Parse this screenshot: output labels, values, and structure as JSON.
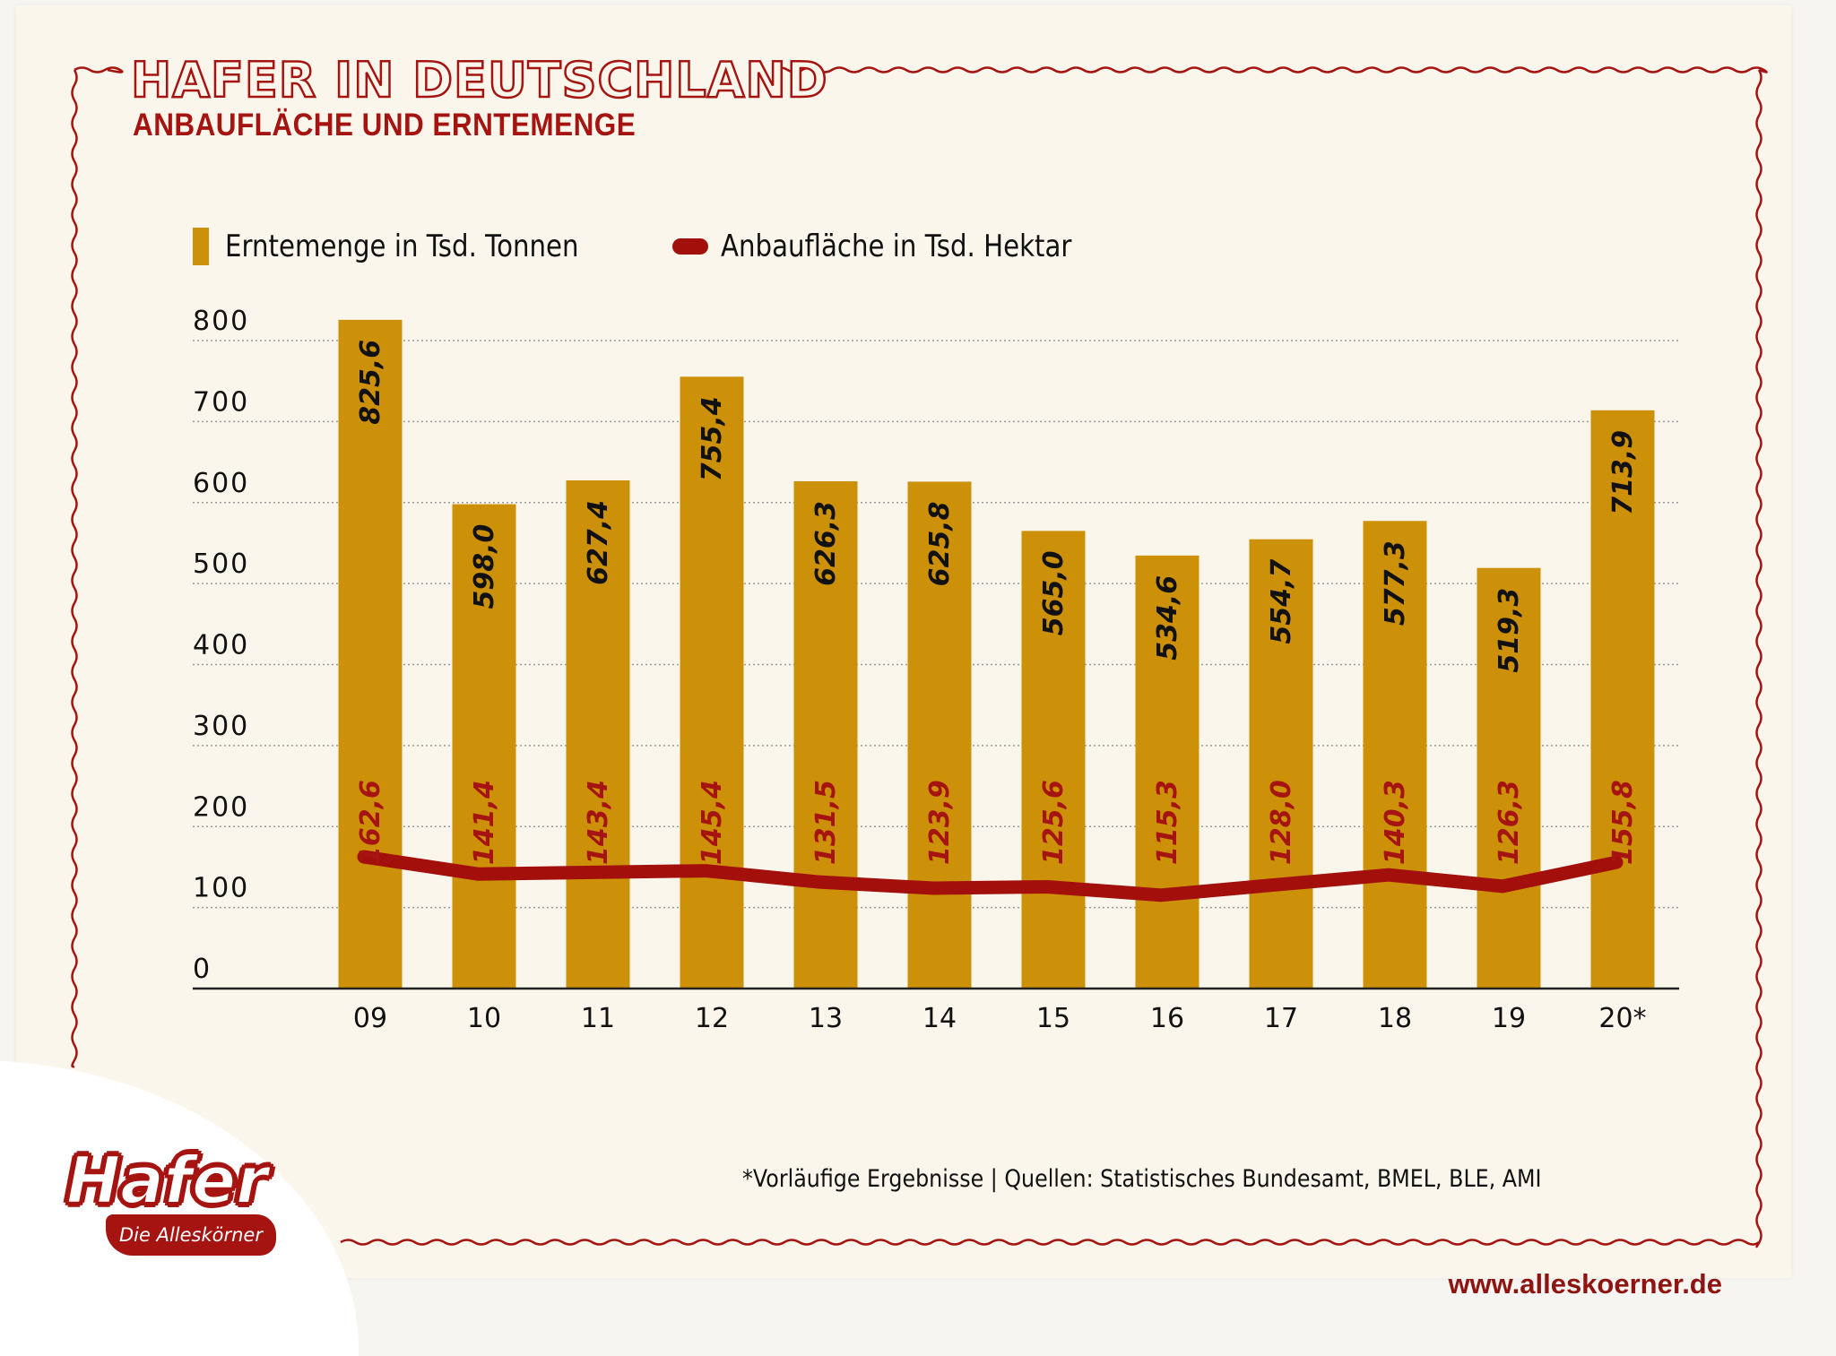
{
  "header": {
    "title": "HAFER IN DEUTSCHLAND",
    "subtitle": "ANBAUFLÄCHE UND ERNTEMENGE"
  },
  "legend": {
    "bars_label": "Erntemenge in Tsd. Tonnen",
    "line_label": "Anbaufläche in Tsd. Hektar"
  },
  "colors": {
    "bar": "#cc9108",
    "line": "#a3100c",
    "accent": "#a51410",
    "bar_label": "#111111",
    "line_label": "#a51410"
  },
  "chart_data": {
    "type": "bar",
    "title": "HAFER IN DEUTSCHLAND",
    "subtitle": "ANBAUFLÄCHE UND ERNTEMENGE",
    "xlabel": "",
    "ylabel": "",
    "categories": [
      "09",
      "10",
      "11",
      "12",
      "13",
      "14",
      "15",
      "16",
      "17",
      "18",
      "19",
      "20*"
    ],
    "series": [
      {
        "name": "Erntemenge in Tsd. Tonnen",
        "type": "bar",
        "values": [
          825.6,
          598.0,
          627.4,
          755.4,
          626.3,
          625.8,
          565.0,
          534.6,
          554.7,
          577.3,
          519.3,
          713.9
        ],
        "labels": [
          "825,6",
          "598,0",
          "627,4",
          "755,4",
          "626,3",
          "625,8",
          "565,0",
          "534,6",
          "554,7",
          "577,3",
          "519,3",
          "713,9"
        ]
      },
      {
        "name": "Anbaufläche in Tsd. Hektar",
        "type": "line",
        "values": [
          162.6,
          141.4,
          143.4,
          145.4,
          131.5,
          123.9,
          125.6,
          115.3,
          128.0,
          140.3,
          126.3,
          155.8
        ],
        "labels": [
          "162,6",
          "141,4",
          "143,4",
          "145,4",
          "131,5",
          "123,9",
          "125,6",
          "115,3",
          "128,0",
          "140,3",
          "126,3",
          "155,8"
        ]
      }
    ],
    "yticks": [
      0,
      100,
      200,
      300,
      400,
      500,
      600,
      700,
      800
    ],
    "ylim": [
      0,
      800
    ],
    "grid": true,
    "legend_position": "top-left"
  },
  "footer": {
    "footnote": "*Vorläufige Ergebnisse | Quellen: Statistisches Bundesamt, BMEL, BLE, AMI",
    "website": "www.alleskoerner.de"
  },
  "logo": {
    "word": "Hafer",
    "tagline": "Die Alleskörner"
  }
}
